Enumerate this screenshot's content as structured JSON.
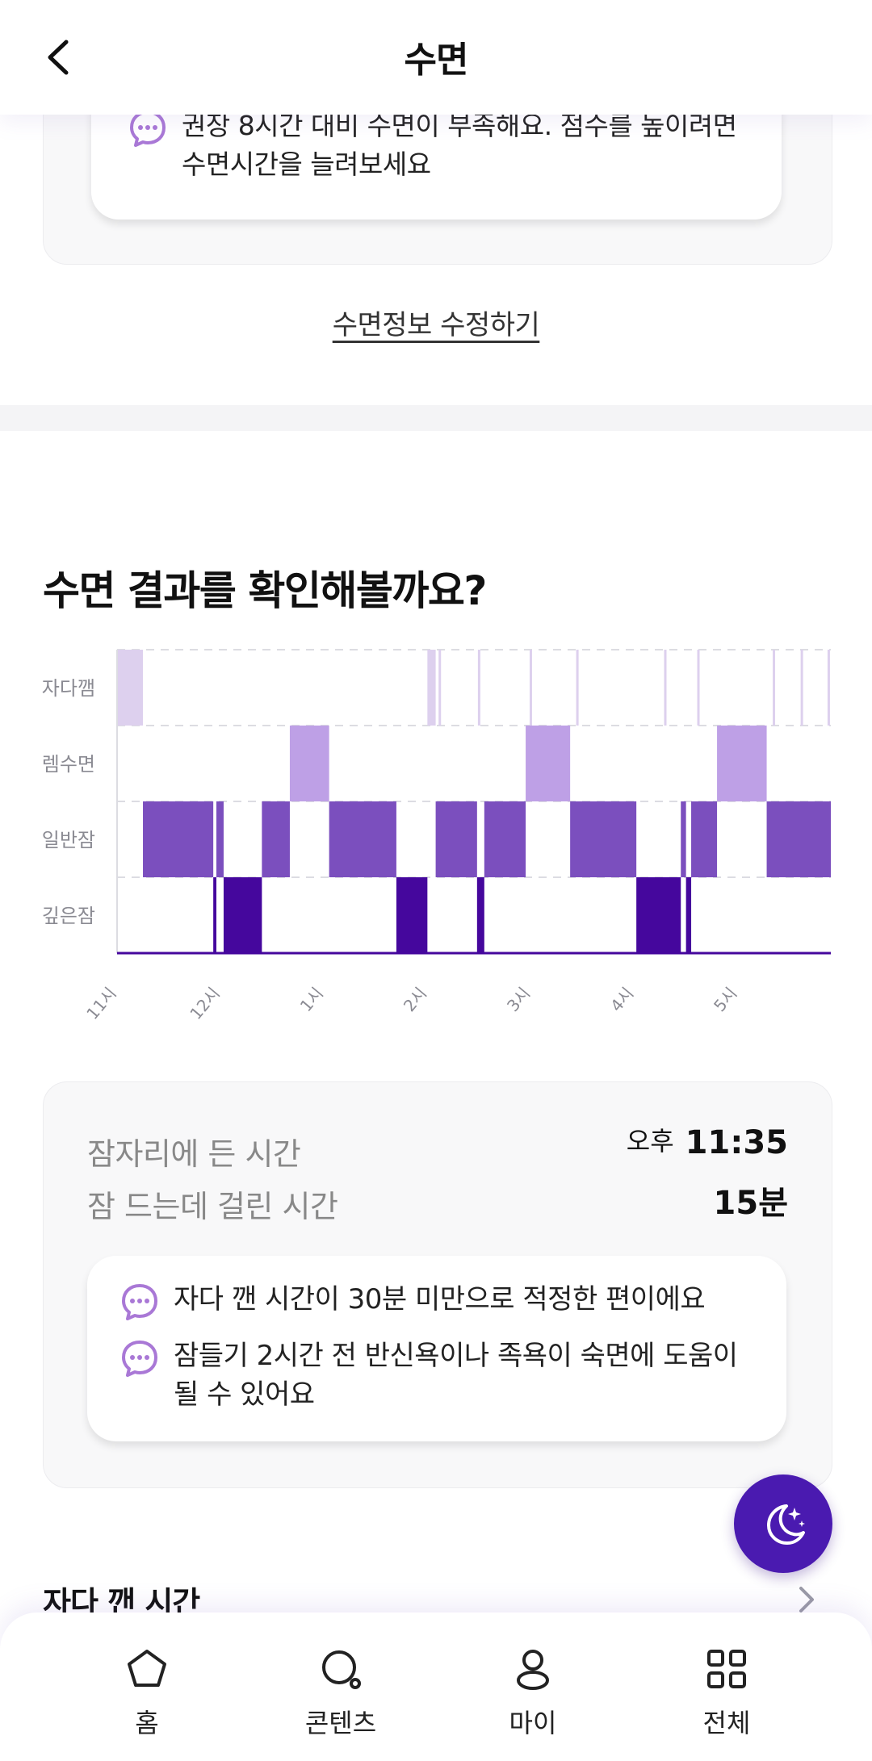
{
  "header": {
    "title": "수면"
  },
  "sleep_tip": {
    "text": "권장 8시간 대비 수면이 부족해요. 점수를 높이려면 수면시간을 늘려보세요"
  },
  "edit_link": "수면정보 수정하기",
  "result_section": {
    "title": "수면 결과를 확인해볼까요?"
  },
  "chart_data": {
    "type": "sleep-hypnogram",
    "stages": [
      "자다깸",
      "렘수면",
      "일반잠",
      "깊은잠"
    ],
    "x_tick_labels": [
      "11시",
      "12시",
      "1시",
      "2시",
      "3시",
      "4시",
      "5시"
    ],
    "x_range_hours": [
      23.0,
      29.9
    ],
    "colors": {
      "자다깸": "#ddd0ee",
      "렘수면": "#bea0e6",
      "일반잠": "#7b4fbe",
      "깊은잠": "#45079d"
    },
    "segments": [
      {
        "stage": "자다깸",
        "start": 23.0,
        "end": 23.25
      },
      {
        "stage": "일반잠",
        "start": 23.25,
        "end": 23.93
      },
      {
        "stage": "깊은잠",
        "start": 23.93,
        "end": 23.96
      },
      {
        "stage": "일반잠",
        "start": 23.96,
        "end": 24.03
      },
      {
        "stage": "깊은잠",
        "start": 24.03,
        "end": 24.4
      },
      {
        "stage": "일반잠",
        "start": 24.4,
        "end": 24.67
      },
      {
        "stage": "렘수면",
        "start": 24.67,
        "end": 25.05
      },
      {
        "stage": "일반잠",
        "start": 25.05,
        "end": 25.7
      },
      {
        "stage": "깊은잠",
        "start": 25.7,
        "end": 26.0
      },
      {
        "stage": "자다깸",
        "start": 26.0,
        "end": 26.08
      },
      {
        "stage": "일반잠",
        "start": 26.08,
        "end": 26.48
      },
      {
        "stage": "깊은잠",
        "start": 26.48,
        "end": 26.55
      },
      {
        "stage": "일반잠",
        "start": 26.55,
        "end": 26.95
      },
      {
        "stage": "렘수면",
        "start": 26.95,
        "end": 27.38
      },
      {
        "stage": "일반잠",
        "start": 27.38,
        "end": 28.02
      },
      {
        "stage": "깊은잠",
        "start": 28.02,
        "end": 28.45
      },
      {
        "stage": "일반잠",
        "start": 28.45,
        "end": 28.5
      },
      {
        "stage": "깊은잠",
        "start": 28.5,
        "end": 28.55
      },
      {
        "stage": "일반잠",
        "start": 28.55,
        "end": 28.8
      },
      {
        "stage": "렘수면",
        "start": 28.8,
        "end": 29.28
      },
      {
        "stage": "일반잠",
        "start": 29.28,
        "end": 29.9
      }
    ],
    "awake_markers": [
      26.12,
      26.5,
      27.0,
      27.45,
      28.3,
      28.62,
      29.35,
      29.62,
      29.88
    ]
  },
  "summary": {
    "bedtime_label": "잠자리에 든 시간",
    "bedtime_ampm": "오후",
    "bedtime_value": "11:35",
    "fall_asleep_label": "잠 드는데 걸린 시간",
    "fall_asleep_value": "15분",
    "tips": [
      "자다 깬 시간이 30분 미만으로 적정한 편이에요",
      "잠들기 2시간 전 반신욕이나 족욕이 숙면에 도움이 될 수 있어요"
    ]
  },
  "awake_section": {
    "title": "자다 깬 시간"
  },
  "bottom_nav": {
    "items": [
      {
        "label": "홈",
        "icon": "home-icon"
      },
      {
        "label": "콘텐츠",
        "icon": "content-search-icon"
      },
      {
        "label": "마이",
        "icon": "person-icon"
      },
      {
        "label": "전체",
        "icon": "grid-icon"
      }
    ]
  },
  "accent_color": "#4a1ab0"
}
